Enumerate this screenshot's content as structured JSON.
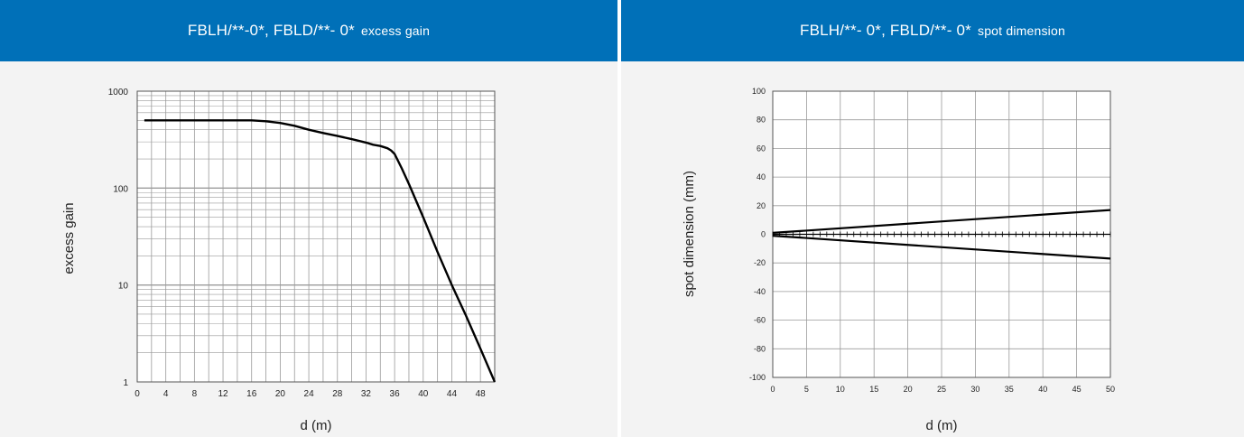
{
  "panels": {
    "left": {
      "title_main": "FBLH/**-0*, FBLD/**- 0*",
      "title_sub": "excess gain"
    },
    "right": {
      "title_main": "FBLH/**- 0*, FBLD/**- 0*",
      "title_sub": "spot dimension"
    }
  },
  "chart_data": [
    {
      "type": "line",
      "xlabel": "d (m)",
      "ylabel": "excess gain",
      "xlim": [
        0,
        50
      ],
      "ylim": [
        1,
        1000
      ],
      "yscale": "log",
      "grid": true,
      "x_ticks": [
        "0",
        "4",
        "8",
        "12",
        "16",
        "20",
        "24",
        "28",
        "32",
        "36",
        "40",
        "44",
        "48"
      ],
      "y_ticks": [
        "1",
        "10",
        "100",
        "1000"
      ],
      "series": [
        {
          "x": [
            1,
            4,
            8,
            12,
            16,
            18,
            20,
            22,
            24,
            26,
            28,
            30,
            32,
            33,
            34,
            35,
            35.5,
            36,
            37,
            38,
            40,
            42,
            44,
            46,
            48,
            50
          ],
          "y": [
            500,
            500,
            500,
            500,
            500,
            490,
            470,
            440,
            400,
            370,
            345,
            320,
            295,
            280,
            272,
            258,
            245,
            225,
            160,
            110,
            50,
            22,
            10,
            4.8,
            2.2,
            1
          ]
        }
      ]
    },
    {
      "type": "line",
      "xlabel": "d (m)",
      "ylabel": "spot dimension (mm)",
      "xlim": [
        0,
        50
      ],
      "ylim": [
        -100,
        100
      ],
      "grid": true,
      "x_ticks": [
        "0",
        "5",
        "10",
        "15",
        "20",
        "25",
        "30",
        "35",
        "40",
        "45",
        "50"
      ],
      "y_ticks": [
        "-100",
        "-80",
        "-60",
        "-40",
        "-20",
        "0",
        "20",
        "40",
        "60",
        "80",
        "100"
      ],
      "series": [
        {
          "x": [
            0,
            50
          ],
          "y": [
            1,
            17
          ]
        },
        {
          "x": [
            0,
            50
          ],
          "y": [
            -1,
            -17
          ]
        },
        {
          "x": [
            0,
            50
          ],
          "y": [
            0,
            0
          ]
        }
      ]
    }
  ]
}
